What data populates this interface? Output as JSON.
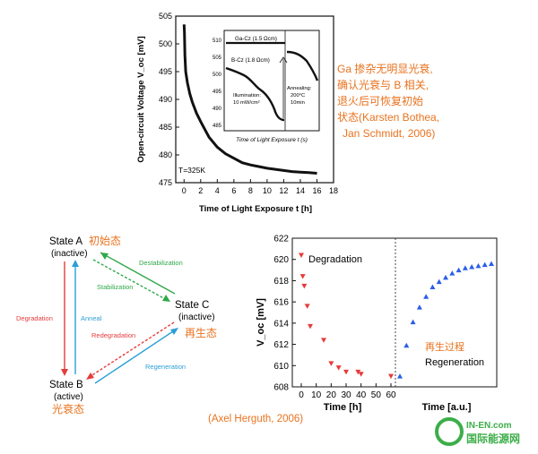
{
  "top_chart": {
    "ylabel": "Open-circuit Voltage V_oc [mV]",
    "xlabel": "Time of Light Exposure t [h]",
    "temperature": "T=325K",
    "inset": {
      "label_gacz": "Ga-Cz (1.5 Ωcm)",
      "label_bcz": "B-Cz (1.8 Ωcm)",
      "label_illum_1": "Illumination:",
      "label_illum_2": "10 mW/cm²",
      "label_anneal_1": "Annealing:",
      "label_anneal_2": "200°C",
      "label_anneal_3": "10min",
      "xlabel": "Time of Light Exposure t (s)"
    }
  },
  "note": {
    "lines": [
      "Ga 掺杂无明显光衰,",
      "确认光衰与 B 相关,",
      "退火后可恢复初始",
      "状态(Karsten Bothea,",
      "Jan Schmidt, 2006)"
    ]
  },
  "state_diagram": {
    "state_a": "State A",
    "state_a_sub": "(inactive)",
    "state_a_cn": "初始态",
    "state_b": "State B",
    "state_b_sub": "(active)",
    "state_b_cn": "光衰态",
    "state_c": "State C",
    "state_c_sub": "(inactive)",
    "state_c_cn": "再生态",
    "destabilization": "Destabilization",
    "stabilization": "Stabilization",
    "degradation": "Degradation",
    "anneal": "Anneal",
    "redegradation": "Redegradation",
    "regeneration": "Regeneration"
  },
  "bottom_chart": {
    "ylabel": "V_oc [mV]",
    "degradation_label": "Degradation",
    "regeneration_cn": "再生过程",
    "regeneration_label": "Regeneration",
    "xlabel_left": "Time [h]",
    "xlabel_right": "Time [a.u.]"
  },
  "citation": "(Axel Herguth, 2006)",
  "watermark": {
    "text_en": "IN-EN.com",
    "text_cn": "国际能源网"
  },
  "chart_data": [
    {
      "type": "line",
      "title": "",
      "xlabel": "Time of Light Exposure t [h]",
      "ylabel": "Open-circuit Voltage V_oc [mV]",
      "xlim": [
        -1,
        18
      ],
      "ylim": [
        475,
        505
      ],
      "x_ticks": [
        0,
        2,
        4,
        6,
        8,
        10,
        12,
        14,
        16,
        18
      ],
      "y_ticks": [
        475,
        480,
        485,
        490,
        495,
        500,
        505
      ],
      "series": [
        {
          "x": [
            0,
            0.05,
            0.1,
            0.2,
            0.4,
            0.7,
            1,
            1.5,
            2,
            3,
            4,
            5,
            6,
            7,
            8,
            9,
            10,
            11,
            12,
            13,
            14,
            15,
            16
          ],
          "y": [
            503.5,
            502,
            498,
            495,
            493,
            491,
            489.5,
            487.5,
            486,
            483.2,
            481.4,
            480.2,
            479.4,
            478.6,
            478.2,
            477.9,
            477.6,
            477.4,
            477.2,
            477.0,
            476.9,
            476.8,
            476.7
          ]
        }
      ],
      "grid": false
    },
    {
      "type": "scatter",
      "title": "",
      "xlabel": "Time [h]",
      "ylabel": "V_oc [mV]",
      "ylim": [
        608,
        622
      ],
      "y_ticks": [
        608,
        610,
        612,
        614,
        616,
        618,
        620,
        622
      ],
      "x_ticks_left": [
        0,
        10,
        20,
        30,
        40,
        50,
        60
      ],
      "series": [
        {
          "x": [
            0,
            1,
            2,
            4,
            6,
            15,
            20,
            25,
            30,
            38,
            40,
            60
          ],
          "y": [
            620.4,
            618.4,
            617.5,
            615.6,
            613.7,
            612.4,
            610.2,
            609.8,
            609.4,
            609.4,
            609.2,
            609.0
          ]
        },
        {
          "x": [
            1,
            2,
            3,
            4,
            5,
            6,
            7,
            8,
            9,
            10,
            11,
            12,
            13,
            14,
            15
          ],
          "y": [
            609.0,
            611.9,
            614.1,
            615.5,
            616.5,
            617.4,
            617.9,
            618.3,
            618.7,
            619.0,
            619.2,
            619.3,
            619.4,
            619.5,
            619.6
          ]
        }
      ],
      "colors": [
        "#e83a3a",
        "#2b5de8"
      ],
      "grid": false
    }
  ]
}
